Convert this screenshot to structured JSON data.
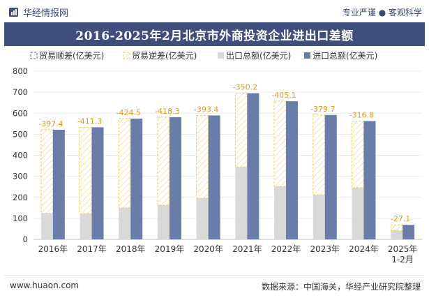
{
  "header": {
    "brand": "华经情报网",
    "tagline": "专业严谨 ● 客观科学"
  },
  "footer": {
    "site": "www.huaon.com",
    "source": "数据来源：中国海关，华经产业研究院整理"
  },
  "colors": {
    "title_bg": "#3e4f7e",
    "import": "#6a7ca8",
    "export": "#d9d9d9",
    "deficit_stroke": "#f2cc50"
  },
  "chart_data": {
    "type": "bar",
    "title": "2016-2025年2月北京市外商投资企业进出口差额",
    "categories": [
      "2016年",
      "2017年",
      "2018年",
      "2019年",
      "2020年",
      "2021年",
      "2022年",
      "2023年",
      "2024年",
      "2025年 1-2月"
    ],
    "ylim": [
      0,
      800
    ],
    "yticks": [
      0,
      100,
      200,
      300,
      400,
      500,
      600,
      700,
      800
    ],
    "legend_position": "top",
    "series": [
      {
        "name": "贸易顺差(亿美元)",
        "values": [
          0,
          0,
          0,
          0,
          0,
          0,
          0,
          0,
          0,
          0
        ]
      },
      {
        "name": "贸易逆差(亿美元)",
        "values": [
          -397.4,
          -411.3,
          -424.5,
          -418.3,
          -393.4,
          -350.2,
          -405.1,
          -379.7,
          -316.8,
          -27.1
        ]
      },
      {
        "name": "出口总额(亿美元)",
        "values": [
          124,
          122,
          150,
          163,
          196,
          345,
          252,
          212,
          246,
          42
        ]
      },
      {
        "name": "进口总额(亿美元)",
        "values": [
          521.4,
          533.3,
          574.5,
          581.3,
          589.4,
          695.2,
          657.1,
          591.7,
          562.8,
          69.1
        ]
      }
    ],
    "data_labels": [
      "-397.4",
      "-411.3",
      "-424.5",
      "-418.3",
      "-393.4",
      "-350.2",
      "-405.1",
      "-379.7",
      "-316.8",
      "-27.1"
    ]
  }
}
